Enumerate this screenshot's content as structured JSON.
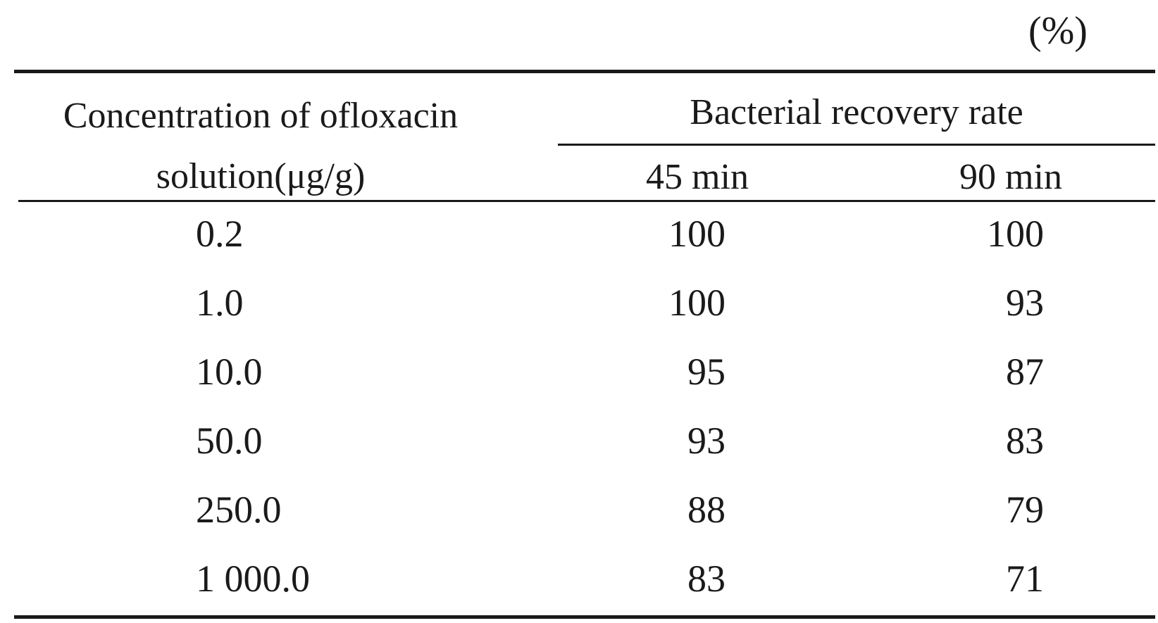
{
  "unit_label": "(%)",
  "header": {
    "concentration": "Concentration of ofloxacin solution(μg/g)",
    "group": "Bacterial recovery rate",
    "col_45": "45 min",
    "col_90": "90 min"
  },
  "rows": [
    {
      "concentration": "0.2",
      "min45": "100",
      "min90": "100"
    },
    {
      "concentration": "1.0",
      "min45": "100",
      "min90": "93"
    },
    {
      "concentration": "10.0",
      "min45": "95",
      "min90": "87"
    },
    {
      "concentration": "50.0",
      "min45": "93",
      "min90": "83"
    },
    {
      "concentration": "250.0",
      "min45": "88",
      "min90": "79"
    },
    {
      "concentration": "1 000.0",
      "min45": "83",
      "min90": "71"
    }
  ]
}
